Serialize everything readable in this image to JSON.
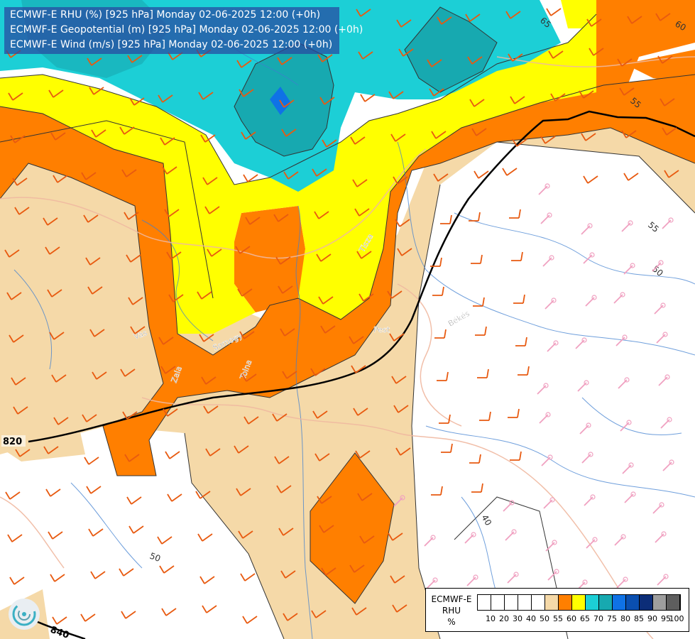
{
  "header": {
    "lines": [
      "ECMWF-E RHU (%) [925 hPa] Monday 02-06-2025 12:00 (+0h)",
      "ECMWF-E Geopotential (m) [925 hPa] Monday 02-06-2025 12:00 (+0h)",
      "ECMWF-E Wind (m/s) [925 hPa] Monday 02-06-2025 12:00 (+0h)"
    ]
  },
  "legend": {
    "title_lines": [
      "ECMWF-E",
      "RHU",
      "%"
    ],
    "ticks": [
      "10",
      "20",
      "30",
      "40",
      "50",
      "55",
      "60",
      "65",
      "70",
      "75",
      "80",
      "85",
      "90",
      "95",
      "100"
    ],
    "colors": [
      "#ffffff",
      "#ffffff",
      "#ffffff",
      "#ffffff",
      "#ffffff",
      "#f5d9a8",
      "#ff7f00",
      "#ffff00",
      "#1ccfd6",
      "#17a9b0",
      "#0f72e6",
      "#0a4fb0",
      "#0c2d78",
      "#9e9e9e",
      "#5e5e5e"
    ]
  },
  "map": {
    "colors": {
      "rh_50_55": "#f5d9a8",
      "rh_55_60": "#ff7f00",
      "rh_60_65": "#ffff00",
      "rh_65_70": "#1ccfd6",
      "rh_70_75": "#17a9b0",
      "rh_75_80": "#0f72e6",
      "river": "#3f7fd0",
      "border": "#f5c0a0",
      "barb_orange": "#e85a10",
      "barb_pink": "#f0a0c0",
      "geopotential": "#000000",
      "rh_contour": "#333333"
    },
    "contour_labels": [
      "65",
      "60",
      "55",
      "55",
      "50",
      "50",
      "40"
    ],
    "geopotential_labels": [
      "820",
      "840"
    ],
    "place_labels": [
      "Vas",
      "Somogy",
      "Zala",
      "Tolna",
      "Pest",
      "Békés",
      "Tisza"
    ]
  }
}
